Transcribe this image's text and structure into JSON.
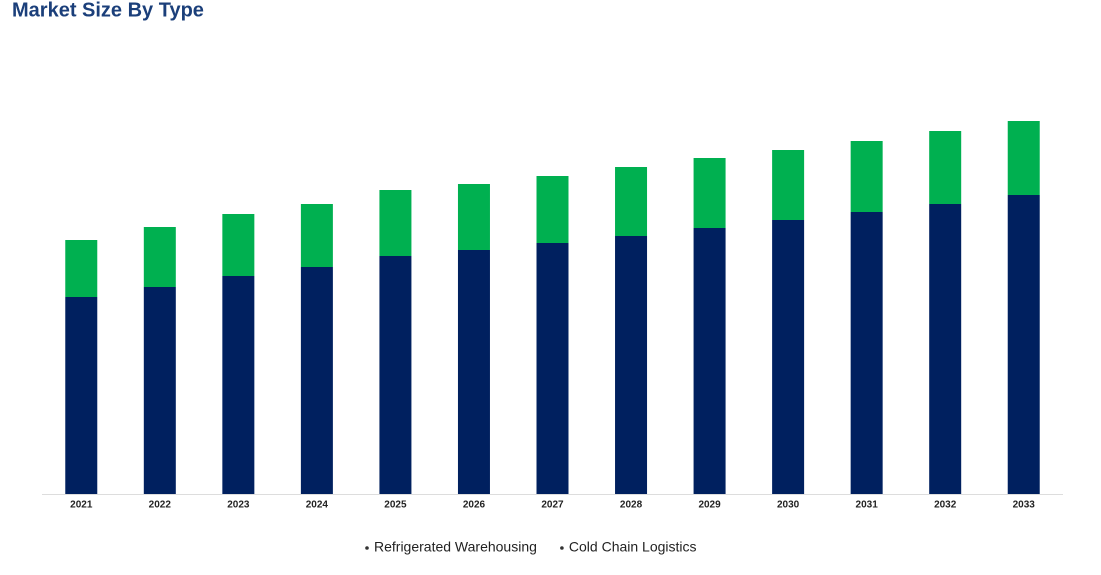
{
  "chart_data": {
    "type": "stacked_bar",
    "title": "Market Size By Type",
    "categories": [
      "2021",
      "2022",
      "2023",
      "2024",
      "2025",
      "2026",
      "2027",
      "2028",
      "2029",
      "2030",
      "2031",
      "2032",
      "2033"
    ],
    "series": [
      {
        "name": "Refrigerated Warehousing",
        "color": "#00205f",
        "values": [
          197,
          207,
          218,
          227,
          238,
          244,
          251,
          258,
          266,
          274,
          282,
          290,
          299
        ]
      },
      {
        "name": "Cold Chain Logistics",
        "color": "#00b050",
        "values": [
          57,
          60,
          62,
          63,
          66,
          66,
          67,
          69,
          70,
          70,
          71,
          73,
          74
        ]
      }
    ],
    "ylim": [
      0,
      400
    ]
  }
}
